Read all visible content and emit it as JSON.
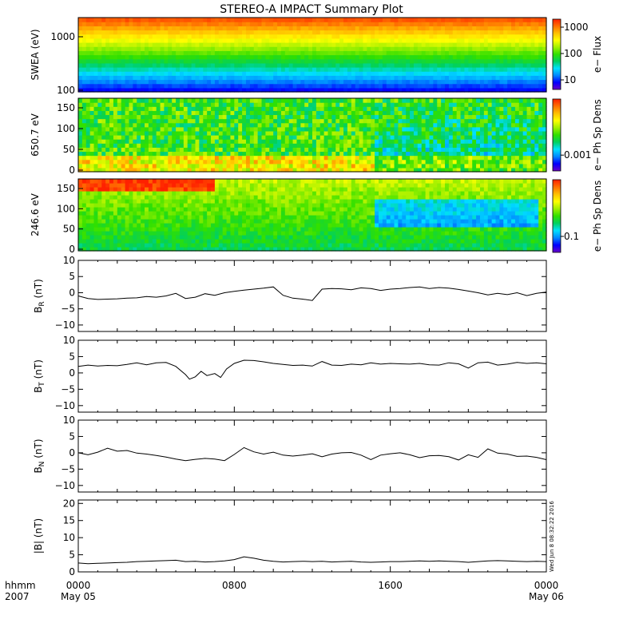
{
  "title": "STEREO-A IMPACT Summary Plot",
  "time_axis": {
    "left_labels": [
      "hhmm",
      "2007"
    ],
    "ticks": [
      {
        "hour": 0,
        "label": "0000",
        "sub": "May 05"
      },
      {
        "hour": 8,
        "label": "0800",
        "sub": ""
      },
      {
        "hour": 16,
        "label": "1600",
        "sub": ""
      },
      {
        "hour": 24,
        "label": "0000",
        "sub": "May 06"
      }
    ],
    "range_hours": [
      0,
      24
    ]
  },
  "timestamp": "Wed Jun 8 08:32:22 2016",
  "colorscale": [
    "#6a00c8",
    "#0000ff",
    "#0088ff",
    "#00e0ff",
    "#00d060",
    "#30e000",
    "#a0f000",
    "#ffff00",
    "#ffc000",
    "#ff7000",
    "#ff2000"
  ],
  "chart_data": [
    {
      "type": "heatmap",
      "id": "swea",
      "ylabel": "SWEA (eV)",
      "yticks": [
        "1000",
        "100"
      ],
      "colorbar_label": "e− Flux",
      "colorbar_ticks": [
        "1000",
        "100",
        "10"
      ]
    },
    {
      "type": "heatmap",
      "id": "pad650",
      "ylabel": "650.7 eV",
      "yticks": [
        "150",
        "100",
        "50",
        "0"
      ],
      "colorbar_label": "e− Ph Sp Dens",
      "colorbar_ticks": [
        "0.001"
      ]
    },
    {
      "type": "heatmap",
      "id": "pad246",
      "ylabel": "246.6 eV",
      "yticks": [
        "150",
        "100",
        "50",
        "0"
      ],
      "colorbar_label": "e− Ph Sp Dens",
      "colorbar_ticks": [
        "0.1"
      ]
    },
    {
      "type": "line",
      "id": "br",
      "ylabel_main": "B",
      "ylabel_sub": "R",
      "ylabel_unit": " (nT)",
      "ylim": [
        -12,
        10
      ],
      "yticks": [
        "10",
        "5",
        "0",
        "−5",
        "−10"
      ],
      "x": [
        0,
        0.5,
        1,
        1.5,
        2,
        2.5,
        3,
        3.5,
        4,
        4.5,
        5,
        5.5,
        6,
        6.5,
        7,
        7.5,
        8,
        8.5,
        9,
        9.5,
        10,
        10.5,
        11,
        11.5,
        12,
        12.5,
        13,
        13.5,
        14,
        14.5,
        15,
        15.5,
        16,
        16.5,
        17,
        17.5,
        18,
        18.5,
        19,
        19.5,
        20,
        20.5,
        21,
        21.5,
        22,
        22.5,
        23,
        23.5,
        24
      ],
      "values": [
        -1,
        -1.8,
        -2.1,
        -2,
        -1.9,
        -1.7,
        -1.6,
        -1.2,
        -1.4,
        -1,
        -0.2,
        -1.8,
        -1.4,
        -0.3,
        -0.8,
        0,
        0.4,
        0.8,
        1.1,
        1.4,
        1.8,
        -0.8,
        -1.7,
        -2,
        -2.4,
        1.1,
        1.3,
        1.2,
        0.9,
        1.5,
        1.3,
        0.7,
        1.1,
        1.3,
        1.6,
        1.8,
        1.3,
        1.6,
        1.4,
        1,
        0.5,
        0,
        -0.7,
        -0.2,
        -0.6,
        0,
        -0.9,
        -0.2,
        0.2
      ]
    },
    {
      "type": "line",
      "id": "bt",
      "ylabel_main": "B",
      "ylabel_sub": "T",
      "ylabel_unit": " (nT)",
      "ylim": [
        -12,
        10
      ],
      "yticks": [
        "10",
        "5",
        "0",
        "−5",
        "−10"
      ],
      "x": [
        0,
        0.5,
        1,
        1.5,
        2,
        2.5,
        3,
        3.5,
        4,
        4.5,
        5,
        5.5,
        5.7,
        6,
        6.3,
        6.6,
        7,
        7.3,
        7.6,
        8,
        8.5,
        9,
        9.5,
        10,
        10.5,
        11,
        11.5,
        12,
        12.5,
        13,
        13.5,
        14,
        14.5,
        15,
        15.5,
        16,
        16.5,
        17,
        17.5,
        18,
        18.5,
        19,
        19.5,
        20,
        20.5,
        21,
        21.5,
        22,
        22.5,
        23,
        23.5,
        24
      ],
      "values": [
        2,
        2.4,
        2.1,
        2.3,
        2.2,
        2.6,
        3.1,
        2.5,
        3.1,
        3.2,
        2,
        -0.5,
        -1.9,
        -1.2,
        0.5,
        -0.8,
        -0.2,
        -1.4,
        1.2,
        2.9,
        3.9,
        3.8,
        3.4,
        2.9,
        2.6,
        2.3,
        2.4,
        2.1,
        3.5,
        2.4,
        2.3,
        2.7,
        2.5,
        3.1,
        2.7,
        2.9,
        2.8,
        2.7,
        2.9,
        2.5,
        2.4,
        3.1,
        2.8,
        1.5,
        3.1,
        3.3,
        2.4,
        2.7,
        3.2,
        2.9,
        3.1,
        2.8
      ]
    },
    {
      "type": "line",
      "id": "bn",
      "ylabel_main": "B",
      "ylabel_sub": "N",
      "ylabel_unit": " (nT)",
      "ylim": [
        -12,
        10
      ],
      "yticks": [
        "10",
        "5",
        "0",
        "−5",
        "−10"
      ],
      "x": [
        0,
        0.5,
        1,
        1.5,
        2,
        2.5,
        3,
        3.5,
        4,
        4.5,
        5,
        5.5,
        6,
        6.5,
        7,
        7.5,
        8,
        8.5,
        9,
        9.5,
        10,
        10.5,
        11,
        11.5,
        12,
        12.5,
        13,
        13.5,
        14,
        14.5,
        15,
        15.5,
        16,
        16.5,
        17,
        17.5,
        18,
        18.5,
        19,
        19.5,
        20,
        20.5,
        21,
        21.5,
        22,
        22.5,
        23,
        23.5,
        24
      ],
      "values": [
        0,
        -0.6,
        0.2,
        1.4,
        0.5,
        0.7,
        -0.1,
        -0.4,
        -0.8,
        -1.3,
        -1.9,
        -2.4,
        -2,
        -1.7,
        -1.9,
        -2.4,
        -0.5,
        1.6,
        0.3,
        -0.4,
        0.2,
        -0.7,
        -1,
        -0.7,
        -0.3,
        -1.2,
        -0.4,
        0,
        0.1,
        -0.7,
        -2.1,
        -0.7,
        -0.3,
        0,
        -0.6,
        -1.5,
        -0.9,
        -0.8,
        -1.2,
        -2.2,
        -0.6,
        -1.4,
        1.2,
        -0.1,
        -0.4,
        -1.1,
        -1,
        -1.4,
        -2.1
      ]
    },
    {
      "type": "line",
      "id": "bmag",
      "ylabel_main": "|B|",
      "ylabel_sub": "",
      "ylabel_unit": " (nT)",
      "ylim": [
        0,
        21
      ],
      "yticks": [
        "20",
        "15",
        "10",
        "5",
        "0"
      ],
      "x": [
        0,
        0.5,
        1,
        1.5,
        2,
        2.5,
        3,
        3.5,
        4,
        4.5,
        5,
        5.5,
        6,
        6.5,
        7,
        7.5,
        8,
        8.5,
        9,
        9.5,
        10,
        10.5,
        11,
        11.5,
        12,
        12.5,
        13,
        13.5,
        14,
        14.5,
        15,
        15.5,
        16,
        16.5,
        17,
        17.5,
        18,
        18.5,
        19,
        19.5,
        20,
        20.5,
        21,
        21.5,
        22,
        22.5,
        23,
        23.5,
        24
      ],
      "values": [
        2.6,
        2.4,
        2.5,
        2.6,
        2.7,
        2.8,
        3,
        3.1,
        3.2,
        3.3,
        3.4,
        3,
        3.1,
        2.9,
        3,
        3.2,
        3.6,
        4.4,
        4,
        3.4,
        3.1,
        2.9,
        3,
        3.1,
        3,
        3.1,
        2.9,
        3,
        3.1,
        2.9,
        2.8,
        2.9,
        3,
        3,
        3.1,
        3.2,
        3.1,
        3.2,
        3.1,
        3,
        2.8,
        3,
        3.2,
        3.3,
        3.2,
        3.1,
        3,
        3.1,
        3
      ]
    }
  ]
}
